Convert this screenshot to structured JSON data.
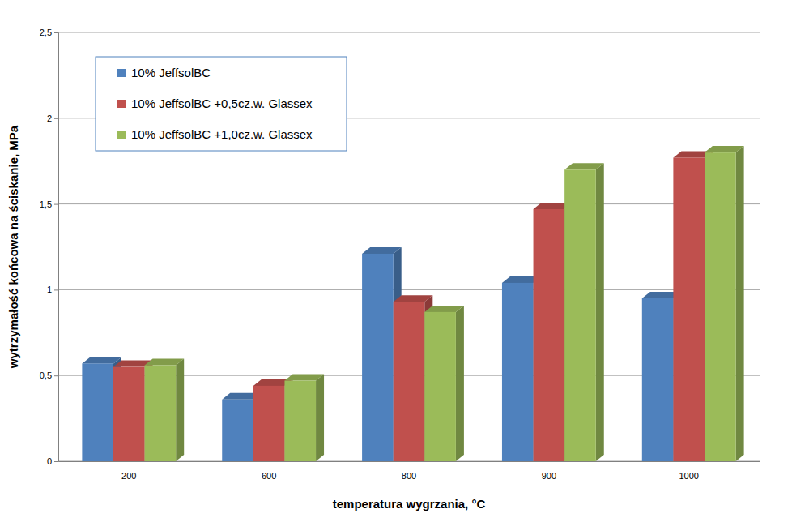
{
  "chart_data": {
    "type": "bar",
    "x_label": "temperatura wygrzania, °C",
    "y_label": "wytrzymałość końcowa na ściskanie, MPa",
    "categories": [
      "200",
      "600",
      "800",
      "900",
      "1000"
    ],
    "series": [
      {
        "name": "10% JeffsolBC",
        "color": "#4f81bd",
        "values": [
          0.57,
          0.36,
          1.21,
          1.04,
          0.95
        ]
      },
      {
        "name": "10% JeffsolBC +0,5cz.w. Glassex",
        "color": "#c0504d",
        "values": [
          0.55,
          0.44,
          0.93,
          1.47,
          1.77
        ]
      },
      {
        "name": "10% JeffsolBC +1,0cz.w. Glassex",
        "color": "#9bbb59",
        "values": [
          0.56,
          0.47,
          0.87,
          1.7,
          1.8
        ]
      }
    ],
    "ylim": [
      0,
      2.5
    ],
    "yticks": [
      0,
      {
        "value": 0.5,
        "label": "0,5"
      },
      1,
      {
        "value": 1.5,
        "label": "1,5"
      },
      2,
      {
        "value": 2.5,
        "label": "2,5"
      }
    ],
    "grid": true,
    "legend": "top-left"
  }
}
